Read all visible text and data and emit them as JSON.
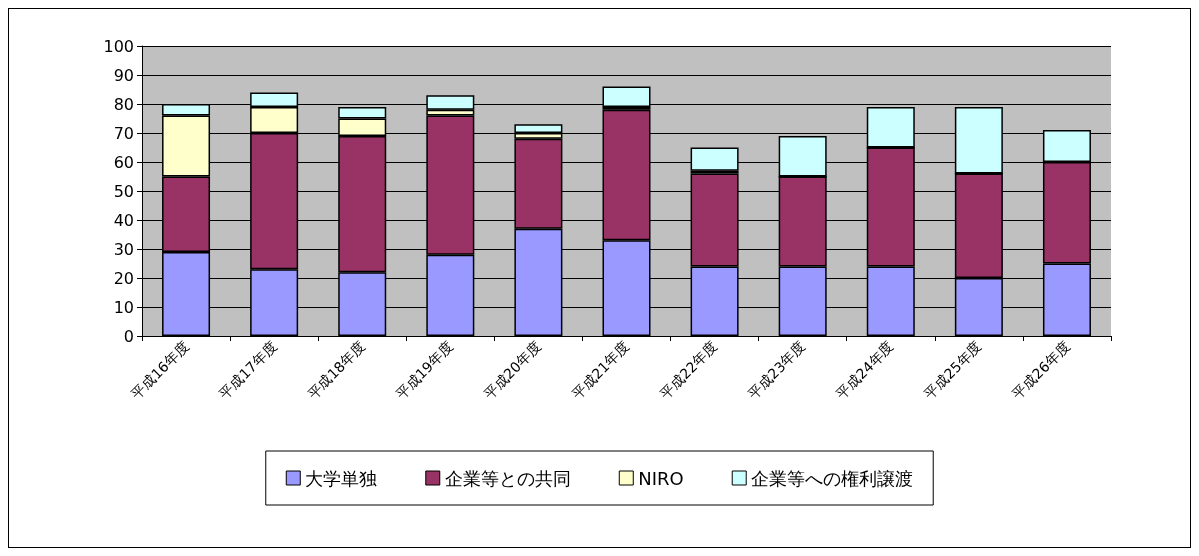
{
  "chart_data": {
    "type": "bar",
    "stacked": true,
    "categories": [
      "平成16年度",
      "平成17年度",
      "平成18年度",
      "平成19年度",
      "平成20年度",
      "平成21年度",
      "平成22年度",
      "平成23年度",
      "平成24年度",
      "平成25年度",
      "平成26年度"
    ],
    "series": [
      {
        "name": "大学単独",
        "color": "#9999ff",
        "values": [
          29,
          23,
          22,
          28,
          37,
          33,
          24,
          24,
          24,
          20,
          25
        ]
      },
      {
        "name": "企業等との共同",
        "color": "#993366",
        "values": [
          26,
          47,
          47,
          48,
          31,
          45,
          32,
          31,
          41,
          36,
          35
        ]
      },
      {
        "name": "NIRO",
        "color": "#ffffcc",
        "values": [
          21,
          9,
          6,
          2,
          2,
          1,
          1,
          0,
          0,
          0,
          0
        ]
      },
      {
        "name": "企業等への権利譲渡",
        "color": "#ccffff",
        "values": [
          4,
          5,
          4,
          5,
          3,
          7,
          8,
          14,
          14,
          23,
          11
        ]
      }
    ],
    "ylim": [
      0,
      100
    ],
    "yticks": [
      0,
      10,
      20,
      30,
      40,
      50,
      60,
      70,
      80,
      90,
      100
    ],
    "grid": "y",
    "legend": "bottom"
  }
}
